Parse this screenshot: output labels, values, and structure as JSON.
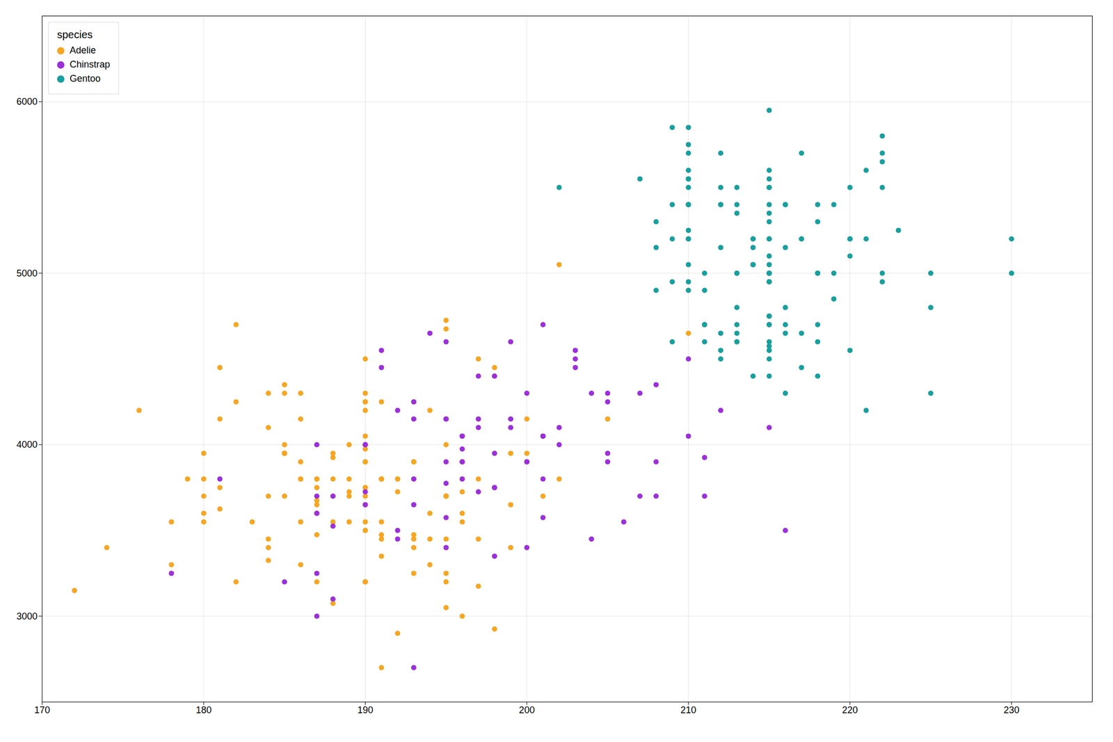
{
  "chart_data": {
    "type": "scatter",
    "legend_title": "species",
    "legend": "upper left",
    "grid": true,
    "xlim": [
      170,
      235
    ],
    "ylim": [
      2500,
      6500
    ],
    "xticks": [
      170,
      180,
      190,
      200,
      210,
      220,
      230
    ],
    "yticks": [
      3000,
      4000,
      5000,
      6000
    ],
    "series": [
      {
        "name": "Adelie",
        "color": "#f5a623",
        "x": [
          181,
          186,
          195,
          193,
          190,
          181,
          195,
          193,
          190,
          186,
          180,
          182,
          191,
          198,
          185,
          195,
          197,
          184,
          194,
          174,
          180,
          189,
          185,
          180,
          187,
          183,
          187,
          172,
          180,
          178,
          178,
          188,
          184,
          195,
          196,
          190,
          180,
          181,
          184,
          182,
          195,
          186,
          196,
          185,
          190,
          182,
          179,
          190,
          191,
          186,
          188,
          190,
          200,
          187,
          191,
          186,
          193,
          181,
          194,
          185,
          195,
          185,
          192,
          184,
          192,
          195,
          188,
          190,
          198,
          190,
          190,
          196,
          197,
          190,
          195,
          191,
          184,
          187,
          195,
          189,
          196,
          187,
          193,
          191,
          194,
          190,
          189,
          189,
          190,
          202,
          205,
          185,
          186,
          187,
          188,
          190,
          192,
          194,
          196,
          197,
          190,
          195,
          191,
          196,
          188,
          199,
          189,
          190,
          187,
          198,
          176,
          202,
          186,
          199,
          191,
          195,
          191,
          210,
          190,
          197,
          193,
          199,
          187,
          190,
          191,
          200,
          185,
          193,
          193,
          187,
          188,
          190,
          192,
          185,
          190,
          184,
          195,
          193,
          187,
          201
        ],
        "values": [
          3750,
          3800,
          3250,
          3450,
          3650,
          3625,
          4675,
          3475,
          4250,
          3300,
          3700,
          3200,
          3800,
          4400,
          3700,
          3450,
          4500,
          3325,
          4200,
          3400,
          3600,
          3800,
          3950,
          3800,
          3800,
          3550,
          3200,
          3150,
          3950,
          3550,
          3300,
          3700,
          3450,
          4000,
          3600,
          3900,
          3550,
          4150,
          3700,
          4250,
          3700,
          3900,
          3550,
          4000,
          3200,
          4700,
          3800,
          4200,
          3350,
          3550,
          3800,
          3500,
          3950,
          3600,
          3550,
          4300,
          3400,
          4450,
          3300,
          4300,
          3700,
          4350,
          2900,
          4100,
          3725,
          4725,
          3075,
          4250,
          2925,
          3550,
          3750,
          3900,
          3175,
          3975,
          3400,
          4250,
          3400,
          3475,
          3050,
          3725,
          3000,
          3650,
          4250,
          3475,
          3450,
          3750,
          3700,
          4000,
          4500,
          5050,
          4150,
          3950,
          3800,
          3800,
          3550,
          3700,
          3800,
          3600,
          3725,
          3450,
          4050,
          3200,
          2700,
          3800,
          3950,
          3650,
          3550,
          3500,
          3675,
          4450,
          4200,
          3800,
          4150,
          3400,
          3800,
          3700,
          3450,
          4650,
          3200,
          3800,
          3900,
          3950,
          3600,
          4300,
          3800,
          4150,
          3950,
          3250,
          3900,
          3600,
          3925,
          3200,
          3800,
          3950,
          3900,
          4300,
          3700,
          3800,
          3750,
          3700
        ]
      },
      {
        "name": "Chinstrap",
        "color": "#9b30d9",
        "x": [
          192,
          196,
          193,
          188,
          197,
          198,
          178,
          197,
          195,
          198,
          193,
          194,
          185,
          201,
          190,
          201,
          197,
          181,
          190,
          195,
          191,
          187,
          193,
          195,
          197,
          200,
          200,
          191,
          205,
          187,
          201,
          187,
          203,
          195,
          199,
          195,
          210,
          192,
          205,
          210,
          187,
          196,
          196,
          196,
          201,
          190,
          212,
          187,
          198,
          199,
          201,
          193,
          203,
          190,
          206,
          216,
          204,
          205,
          202,
          211,
          195,
          192,
          193,
          196,
          188,
          199,
          202,
          200,
          211,
          196,
          204,
          188,
          195,
          198,
          207,
          207,
          208,
          200,
          203,
          208,
          208,
          205,
          198,
          215
        ],
        "values": [
          3500,
          3900,
          3650,
          3525,
          3725,
          3950,
          3250,
          4150,
          3900,
          4400,
          4150,
          4650,
          3200,
          3800,
          4000,
          4700,
          4400,
          3800,
          4000,
          3400,
          4550,
          3700,
          3800,
          3775,
          4100,
          4300,
          3400,
          4450,
          4300,
          3250,
          4050,
          3000,
          4450,
          4600,
          4600,
          4150,
          4500,
          4200,
          3950,
          4050,
          4000,
          3800,
          3900,
          4050,
          3575,
          3725,
          4200,
          3600,
          3350,
          4100,
          4050,
          2700,
          4500,
          3650,
          3550,
          3500,
          4300,
          3900,
          4000,
          3700,
          3575,
          3450,
          4250,
          3975,
          3100,
          4150,
          4100,
          3900,
          3925,
          4050,
          3450,
          3700,
          4150,
          3750,
          4300,
          3700,
          4350,
          3900,
          4550,
          3900,
          3700,
          4250,
          3750,
          4100
        ]
      },
      {
        "name": "Gentoo",
        "color": "#1a9e9e",
        "x": [
          211,
          230,
          210,
          218,
          215,
          210,
          211,
          219,
          209,
          215,
          214,
          216,
          214,
          213,
          210,
          217,
          210,
          221,
          209,
          222,
          218,
          215,
          213,
          215,
          215,
          215,
          216,
          215,
          210,
          220,
          222,
          209,
          207,
          230,
          220,
          220,
          213,
          219,
          208,
          208,
          208,
          225,
          210,
          216,
          222,
          217,
          210,
          225,
          213,
          215,
          210,
          220,
          210,
          225,
          212,
          221,
          202,
          211,
          210,
          215,
          213,
          215,
          218,
          215,
          215,
          211,
          216,
          220,
          209,
          212,
          214,
          214,
          216,
          217,
          210,
          221,
          218,
          214,
          216,
          213,
          213,
          210,
          218,
          217,
          216,
          212,
          215,
          222,
          212,
          213,
          218,
          215,
          215,
          214,
          215,
          222,
          212,
          213,
          215,
          210,
          211,
          209,
          215,
          210,
          215,
          215,
          215,
          223,
          212,
          212,
          215,
          215,
          212,
          215,
          210,
          213,
          215,
          215,
          210,
          222,
          217,
          219,
          218,
          215
        ],
        "values": [
          4600,
          5200,
          5400,
          4600,
          5400,
          5400,
          5000,
          5000,
          5200,
          5200,
          4400,
          5150,
          5050,
          4650,
          5550,
          4650,
          5850,
          4200,
          5850,
          5800,
          5000,
          4550,
          5000,
          5550,
          5000,
          5950,
          5400,
          5200,
          5200,
          5500,
          4950,
          5400,
          5550,
          5000,
          5100,
          5200,
          5400,
          5400,
          5150,
          4900,
          5300,
          5000,
          5050,
          4300,
          5000,
          4450,
          5550,
          4800,
          5000,
          5100,
          5200,
          4550,
          4950,
          4300,
          5400,
          5200,
          5500,
          4700,
          5500,
          4575,
          5500,
          5500,
          4700,
          5000,
          4950,
          4700,
          4800,
          5200,
          4600,
          5400,
          5200,
          5200,
          5400,
          5200,
          5400,
          5600,
          5400,
          5150,
          4700,
          4800,
          5350,
          5700,
          5000,
          5700,
          4650,
          4650,
          5500,
          5650,
          5150,
          4600,
          4400,
          5000,
          4400,
          5050,
          5050,
          5700,
          5700,
          4700,
          5000,
          4900,
          4900,
          4950,
          4750,
          5250,
          4700,
          5300,
          4600,
          5250,
          4550,
          4500,
          4700,
          4950,
          5500,
          4750,
          5600,
          4600,
          5350,
          4500,
          5750,
          5500,
          5200,
          4850,
          5300,
          5600
        ]
      }
    ]
  }
}
